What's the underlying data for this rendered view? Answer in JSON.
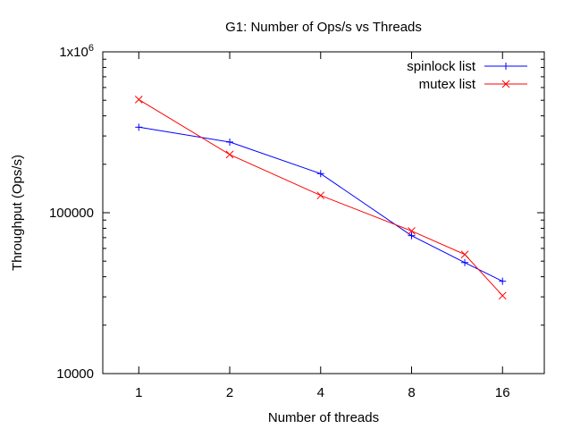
{
  "chart_data": {
    "type": "line",
    "title": "G1: Number of Ops/s vs Threads",
    "xlabel": "Number of threads",
    "ylabel": "Throughput (Ops/s)",
    "x_scale": "log2",
    "y_scale": "log10",
    "xlim": [
      0.76,
      22
    ],
    "ylim": [
      10000,
      1000000
    ],
    "x_ticks": [
      1,
      2,
      4,
      8,
      16
    ],
    "x_tick_labels": [
      "1",
      "2",
      "4",
      "8",
      "16"
    ],
    "y_ticks": [
      10000,
      100000,
      1000000
    ],
    "y_tick_labels": [
      "10000",
      "100000",
      "1x10^6"
    ],
    "legend": "top-right",
    "grid": false,
    "series": [
      {
        "name": "spinlock list",
        "color": "#0000ff",
        "marker": "plus",
        "x": [
          1,
          2,
          4,
          8,
          12,
          16
        ],
        "y": [
          340000,
          275000,
          175000,
          72000,
          49000,
          37500
        ]
      },
      {
        "name": "mutex list",
        "color": "#ff0000",
        "marker": "cross",
        "x": [
          1,
          2,
          4,
          8,
          12,
          16
        ],
        "y": [
          505000,
          230000,
          128000,
          77000,
          55000,
          30500
        ]
      }
    ]
  }
}
